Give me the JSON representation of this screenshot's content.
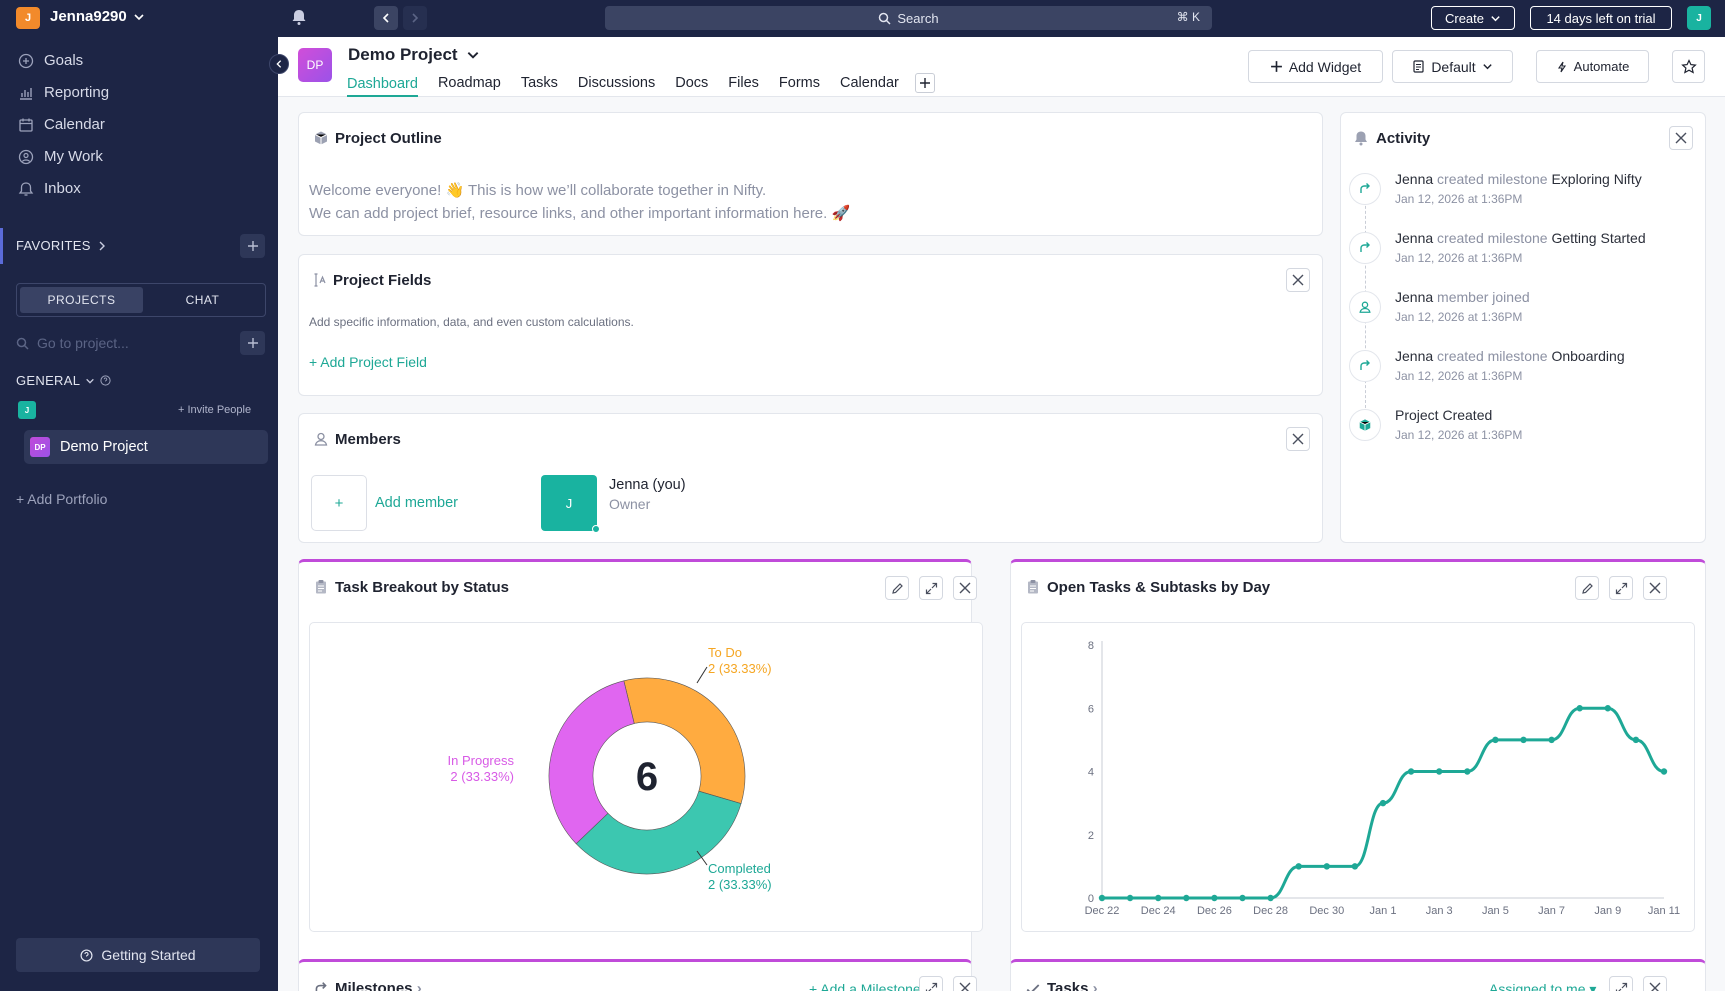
{
  "topbar": {
    "user_initial": "J",
    "username": "Jenna9290",
    "search_placeholder": "Search",
    "search_shortcut": "⌘ K",
    "create_label": "Create",
    "trial_label": "14 days left on trial",
    "user_avatar_initial": "J"
  },
  "sidebar": {
    "nav": [
      {
        "label": "Goals",
        "icon": "goals-icon"
      },
      {
        "label": "Reporting",
        "icon": "reporting-icon"
      },
      {
        "label": "Calendar",
        "icon": "calendar-icon"
      },
      {
        "label": "My Work",
        "icon": "my-work-icon"
      },
      {
        "label": "Inbox",
        "icon": "inbox-icon"
      }
    ],
    "favorites_label": "FAVORITES",
    "toggle": {
      "projects": "PROJECTS",
      "chat": "CHAT"
    },
    "goto_placeholder": "Go to project...",
    "general_label": "GENERAL",
    "member_initial": "J",
    "invite_label": "+ Invite People",
    "project": {
      "initials": "DP",
      "name": "Demo Project"
    },
    "add_portfolio": "+ Add Portfolio",
    "getting_started": "Getting Started"
  },
  "header": {
    "project_initials": "DP",
    "project_name": "Demo Project",
    "tabs": [
      "Dashboard",
      "Roadmap",
      "Tasks",
      "Discussions",
      "Docs",
      "Files",
      "Forms",
      "Calendar"
    ],
    "add_widget": "Add Widget",
    "default": "Default",
    "automate": "Automate"
  },
  "outline": {
    "title": "Project Outline",
    "line1": "Welcome everyone! 👋 This is how we’ll collaborate together in Nifty.",
    "line2": "We can add project brief, resource links, and other important information here. 🚀"
  },
  "fields": {
    "title": "Project Fields",
    "description": "Add specific information, data, and even custom calculations.",
    "add_label": "+ Add Project Field"
  },
  "members": {
    "title": "Members",
    "add_symbol": "+",
    "add_label": "Add member",
    "member_initial": "J",
    "member_name": "Jenna (you)",
    "member_role": "Owner"
  },
  "activity": {
    "title": "Activity",
    "items": [
      {
        "actor": "Jenna",
        "action": " created milestone ",
        "target": "Exploring Nifty",
        "time": "Jan 12, 2026 at 1:36PM",
        "icon": "milestone-arrow-icon"
      },
      {
        "actor": "Jenna",
        "action": " created milestone ",
        "target": "Getting Started",
        "time": "Jan 12, 2026 at 1:36PM",
        "icon": "milestone-arrow-icon"
      },
      {
        "actor": "Jenna",
        "action": " member joined",
        "target": "",
        "time": "Jan 12, 2026 at 1:36PM",
        "icon": "member-icon"
      },
      {
        "actor": "Jenna",
        "action": " created milestone ",
        "target": "Onboarding",
        "time": "Jan 12, 2026 at 1:36PM",
        "icon": "milestone-arrow-icon"
      },
      {
        "actor": "Project Created",
        "action": "",
        "target": "",
        "time": "Jan 12, 2026 at 1:36PM",
        "icon": "cube-icon"
      }
    ]
  },
  "task_breakout": {
    "title": "Task Breakout by Status",
    "total": "6",
    "labels": [
      {
        "name": "To Do",
        "value": "2 (33.33%)"
      },
      {
        "name": "In Progress",
        "value": "2 (33.33%)"
      },
      {
        "name": "Completed",
        "value": "2 (33.33%)"
      }
    ]
  },
  "open_tasks": {
    "title": "Open Tasks & Subtasks by Day"
  },
  "milestones": {
    "title": "Milestones",
    "add_label": "+ Add a Milestone"
  },
  "tasks_widget": {
    "title": "Tasks",
    "filter_label": "Assigned to me"
  },
  "colors": {
    "accent": "#1ea896",
    "purple": "#c04bd9",
    "todo": "#ffab40",
    "progress": "#e066f0",
    "completed": "#3cc7b0",
    "nav": "#1d2545"
  },
  "chart_data": [
    {
      "type": "pie",
      "title": "Task Breakout by Status",
      "categories": [
        "To Do",
        "Completed",
        "In Progress"
      ],
      "values": [
        2,
        2,
        2
      ],
      "colors": [
        "#ffab40",
        "#3cc7b0",
        "#e066f0"
      ],
      "center_label": "6"
    },
    {
      "type": "line",
      "title": "Open Tasks & Subtasks by Day",
      "x": [
        "Dec 22",
        "Dec 23",
        "Dec 24",
        "Dec 25",
        "Dec 26",
        "Dec 27",
        "Dec 28",
        "Dec 29",
        "Dec 30",
        "Dec 31",
        "Jan 1",
        "Jan 2",
        "Jan 3",
        "Jan 4",
        "Jan 5",
        "Jan 6",
        "Jan 7",
        "Jan 8",
        "Jan 9",
        "Jan 10",
        "Jan 11"
      ],
      "x_tick_labels": [
        "Dec 22",
        "Dec 24",
        "Dec 26",
        "Dec 28",
        "Dec 30",
        "Jan 1",
        "Jan 3",
        "Jan 5",
        "Jan 7",
        "Jan 9",
        "Jan 11"
      ],
      "y_ticks": [
        0,
        2,
        4,
        6,
        8
      ],
      "ylim": [
        0,
        8
      ],
      "series": [
        {
          "values": [
            0,
            0,
            0,
            0,
            0,
            0,
            0,
            1,
            1,
            1,
            3,
            4,
            4,
            4,
            5,
            5,
            5,
            6,
            6,
            5,
            4
          ],
          "color": "#1ea896"
        }
      ]
    }
  ]
}
